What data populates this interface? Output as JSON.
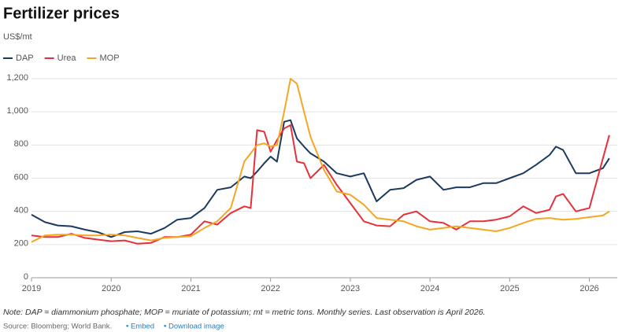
{
  "chart_data": {
    "type": "line",
    "title": "Fertilizer prices",
    "subtitle": "US$/mt",
    "note": "Note: DAP = diammonium phosphate; MOP = muriate of potassium; mt = metric tons. Monthly series. Last observation is April 2026.",
    "source": "Source: Bloomberg; World Bank.",
    "links": [
      "• Embed",
      "• Download image"
    ],
    "x": [
      2019.0,
      2019.17,
      2019.33,
      2019.5,
      2019.67,
      2019.83,
      2020.0,
      2020.17,
      2020.33,
      2020.5,
      2020.67,
      2020.83,
      2021.0,
      2021.17,
      2021.33,
      2021.5,
      2021.67,
      2021.75,
      2021.83,
      2021.92,
      2022.0,
      2022.08,
      2022.17,
      2022.25,
      2022.33,
      2022.42,
      2022.5,
      2022.67,
      2022.83,
      2023.0,
      2023.17,
      2023.33,
      2023.5,
      2023.67,
      2023.83,
      2024.0,
      2024.17,
      2024.33,
      2024.5,
      2024.67,
      2024.83,
      2025.0,
      2025.17,
      2025.33,
      2025.5,
      2025.58,
      2025.67,
      2025.83,
      2026.0,
      2026.17,
      2026.25
    ],
    "series": [
      {
        "name": "DAP",
        "color": "#1b3a5e",
        "values": [
          380,
          335,
          315,
          310,
          290,
          275,
          245,
          275,
          280,
          265,
          300,
          350,
          360,
          420,
          530,
          545,
          610,
          600,
          640,
          690,
          730,
          700,
          940,
          950,
          840,
          790,
          750,
          700,
          630,
          610,
          630,
          460,
          530,
          540,
          590,
          610,
          530,
          545,
          545,
          570,
          570,
          600,
          630,
          680,
          740,
          790,
          770,
          630,
          630,
          660,
          720
        ]
      },
      {
        "name": "Urea",
        "color": "#e8303a",
        "values": [
          255,
          245,
          245,
          265,
          240,
          230,
          220,
          225,
          205,
          210,
          245,
          245,
          260,
          340,
          320,
          390,
          430,
          420,
          890,
          880,
          760,
          830,
          900,
          920,
          700,
          690,
          600,
          680,
          560,
          450,
          340,
          315,
          310,
          380,
          400,
          340,
          330,
          290,
          340,
          340,
          350,
          370,
          430,
          390,
          410,
          490,
          505,
          400,
          420,
          720,
          860
        ]
      },
      {
        "name": "MOP",
        "color": "#f5a623",
        "values": [
          215,
          255,
          260,
          260,
          255,
          255,
          260,
          255,
          240,
          225,
          240,
          245,
          250,
          300,
          340,
          420,
          700,
          750,
          800,
          810,
          790,
          800,
          1000,
          1200,
          1170,
          1000,
          850,
          650,
          520,
          500,
          440,
          360,
          350,
          340,
          310,
          290,
          300,
          310,
          300,
          290,
          280,
          300,
          330,
          355,
          360,
          355,
          350,
          355,
          365,
          375,
          400
        ]
      }
    ],
    "xlim": [
      2019,
      2026.35
    ],
    "xticks": [
      2019,
      2020,
      2021,
      2022,
      2023,
      2024,
      2025,
      2026
    ],
    "ylim": [
      0,
      1200
    ],
    "yticks": [
      0,
      200,
      400,
      600,
      800,
      {
        "value": 1000,
        "label": "1,000"
      },
      {
        "value": 1200,
        "label": "1,200"
      }
    ],
    "grid": true,
    "legend": "top-left"
  }
}
